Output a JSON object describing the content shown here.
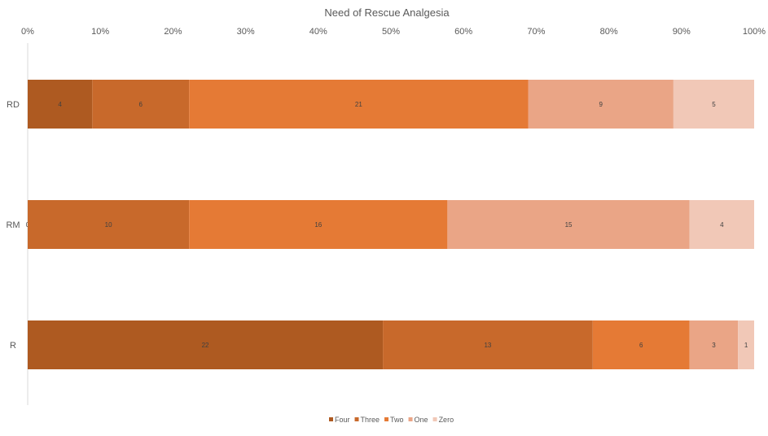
{
  "chart_data": {
    "type": "bar",
    "orientation": "horizontal",
    "stacked": "100%",
    "title": "Need of Rescue Analgesia",
    "categories": [
      "RD",
      "RM",
      "R"
    ],
    "series": [
      {
        "name": "Four",
        "color": "#ae5a21",
        "values": [
          4,
          0,
          22
        ]
      },
      {
        "name": "Three",
        "color": "#c8692b",
        "values": [
          6,
          10,
          13
        ]
      },
      {
        "name": "Two",
        "color": "#e57a35",
        "values": [
          21,
          16,
          6
        ]
      },
      {
        "name": "One",
        "color": "#eaa586",
        "values": [
          9,
          15,
          3
        ]
      },
      {
        "name": "Zero",
        "color": "#f1c8b7",
        "values": [
          5,
          4,
          1
        ]
      }
    ],
    "xaxis_ticks": [
      "0%",
      "10%",
      "20%",
      "30%",
      "40%",
      "50%",
      "60%",
      "70%",
      "80%",
      "90%",
      "100%"
    ],
    "xlim": [
      0,
      100
    ],
    "xaxis_position": "top",
    "grid": false,
    "legend_position": "bottom"
  }
}
